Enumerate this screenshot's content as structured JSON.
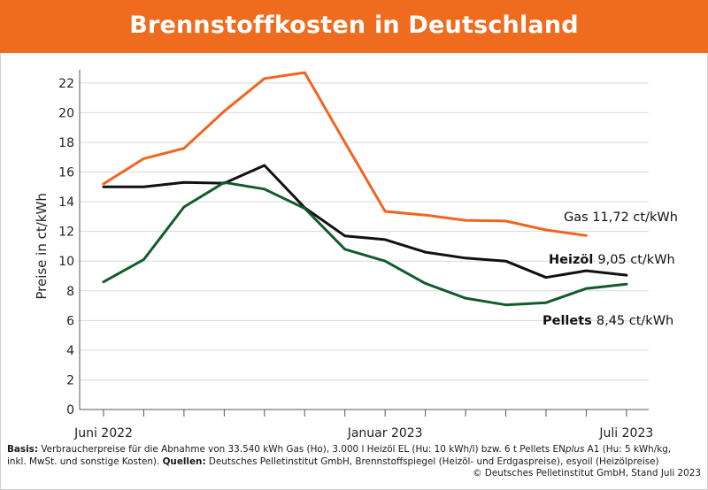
{
  "title": "Brennstoffkosten in Deutschland",
  "chart_data": {
    "type": "line",
    "ylabel": "Preise in ct/kWh",
    "xlabel": "",
    "ylim": [
      0,
      23
    ],
    "yticks": [
      0,
      2,
      4,
      6,
      8,
      10,
      12,
      14,
      16,
      18,
      20,
      22
    ],
    "x_months": [
      "2022-06",
      "2022-07",
      "2022-08",
      "2022-09",
      "2022-10",
      "2022-11",
      "2022-12",
      "2023-01",
      "2023-02",
      "2023-03",
      "2023-04",
      "2023-05",
      "2023-06",
      "2023-07"
    ],
    "x_tick_labels": [
      {
        "month": "2022-06",
        "label": "Juni 2022"
      },
      {
        "month": "2023-01",
        "label": "Januar 2023"
      },
      {
        "month": "2023-07",
        "label": "Juli 2023"
      }
    ],
    "grid": true,
    "series": [
      {
        "name": "Gas",
        "label_value": "11,72 ct/kWh",
        "color": "#f0641e",
        "x": [
          "2022-06",
          "2022-07",
          "2022-08",
          "2022-09",
          "2022-10",
          "2022-11",
          "2022-12",
          "2023-01",
          "2023-02",
          "2023-03",
          "2023-04",
          "2023-05",
          "2023-06"
        ],
        "values": [
          15.2,
          16.9,
          17.6,
          20.1,
          22.3,
          22.7,
          18.0,
          13.35,
          13.1,
          12.75,
          12.7,
          12.1,
          11.72
        ]
      },
      {
        "name": "Heizöl",
        "label_value": "9,05 ct/kWh",
        "color": "#111111",
        "x": [
          "2022-06",
          "2022-07",
          "2022-08",
          "2022-09",
          "2022-10",
          "2022-11",
          "2022-12",
          "2023-01",
          "2023-02",
          "2023-03",
          "2023-04",
          "2023-05",
          "2023-06",
          "2023-07"
        ],
        "values": [
          15.0,
          15.0,
          15.3,
          15.25,
          16.45,
          13.6,
          11.7,
          11.45,
          10.6,
          10.2,
          10.0,
          8.9,
          9.35,
          9.05
        ]
      },
      {
        "name": "Pellets",
        "label_value": "8,45 ct/kWh",
        "color": "#125c2c",
        "x": [
          "2022-06",
          "2022-07",
          "2022-08",
          "2022-09",
          "2022-10",
          "2022-11",
          "2022-12",
          "2023-01",
          "2023-02",
          "2023-03",
          "2023-04",
          "2023-05",
          "2023-06",
          "2023-07"
        ],
        "values": [
          8.6,
          10.1,
          13.65,
          15.3,
          14.85,
          13.55,
          10.8,
          10.0,
          8.5,
          7.5,
          7.05,
          7.2,
          8.15,
          8.45
        ]
      }
    ]
  },
  "footnote": {
    "basis_label": "Basis:",
    "basis_text_1": " Verbraucherpreise für die Abnahme von 33.540 kWh Gas (Ho), 3.000 l Heizöl EL (Hu: 10 kWh/l) bzw. 6 t Pellets EN",
    "basis_italic": "plus",
    "basis_text_2": " A1 (Hu: 5 kWh/kg,",
    "line2_text": "inkl. MwSt. und sonstige Kosten). ",
    "quellen_label": "Quellen:",
    "quellen_text": " Deutsches Pelletinstitut GmbH, Brennstoffspiegel (Heizöl- und Erdgaspreise), esyoil (Heizölpreise)",
    "copyright": "© Deutsches Pelletinstitut GmbH, Stand Juli 2023"
  }
}
